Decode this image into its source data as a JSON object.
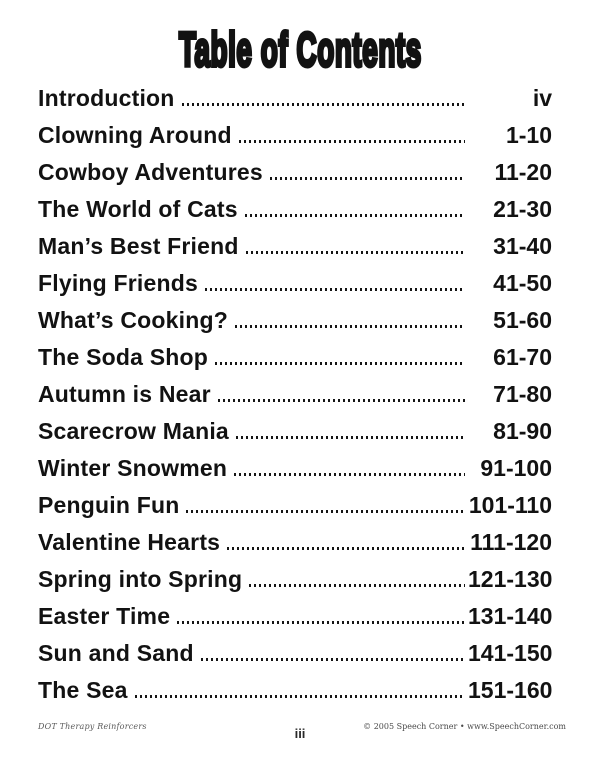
{
  "page": {
    "title": "Table of Contents",
    "footer": {
      "left": "DOT Therapy Reinforcers",
      "center": "iii",
      "right": "© 2005 Speech Corner • www.SpeechCorner.com"
    },
    "colors": {
      "text": "#121212",
      "background": "#ffffff"
    }
  },
  "toc": {
    "entries": [
      {
        "label": "Introduction",
        "pages": "iv"
      },
      {
        "label": "Clowning Around",
        "pages": "1-10"
      },
      {
        "label": "Cowboy Adventures",
        "pages": "11-20"
      },
      {
        "label": "The World of Cats",
        "pages": "21-30"
      },
      {
        "label": "Man’s Best Friend",
        "pages": "31-40"
      },
      {
        "label": "Flying Friends",
        "pages": "41-50"
      },
      {
        "label": "What’s Cooking?",
        "pages": "51-60"
      },
      {
        "label": "The Soda Shop",
        "pages": "61-70"
      },
      {
        "label": "Autumn is Near",
        "pages": "71-80"
      },
      {
        "label": "Scarecrow Mania",
        "pages": "81-90"
      },
      {
        "label": "Winter Snowmen",
        "pages": "91-100"
      },
      {
        "label": "Penguin Fun",
        "pages": "101-110"
      },
      {
        "label": "Valentine Hearts",
        "pages": "111-120"
      },
      {
        "label": "Spring into Spring",
        "pages": "121-130"
      },
      {
        "label": "Easter Time",
        "pages": "131-140"
      },
      {
        "label": "Sun and Sand",
        "pages": "141-150"
      },
      {
        "label": "The Sea",
        "pages": "151-160"
      }
    ]
  }
}
